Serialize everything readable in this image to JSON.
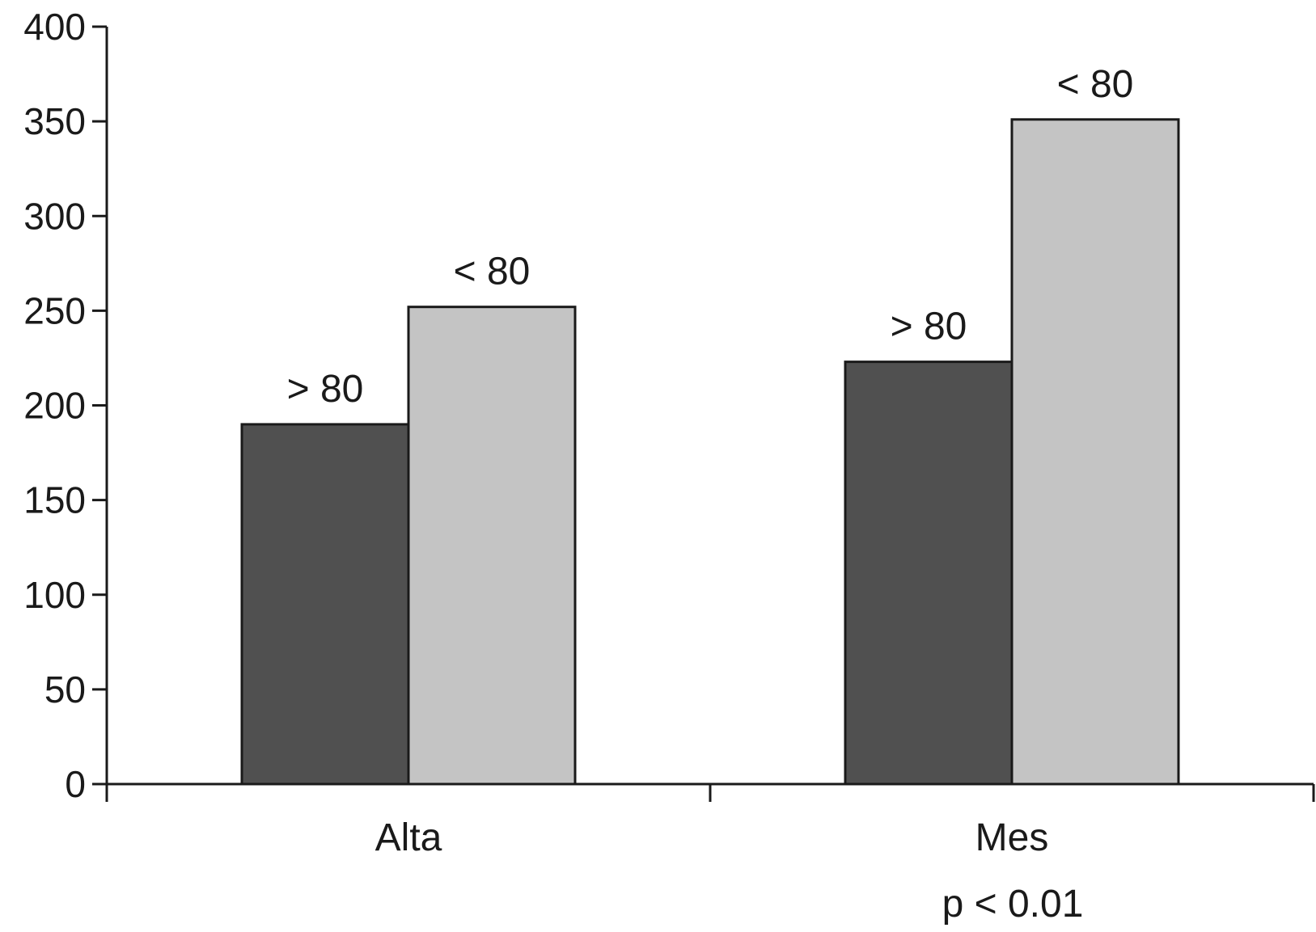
{
  "chart_data": {
    "type": "bar",
    "categories": [
      "Alta",
      "Mes"
    ],
    "series": [
      {
        "values": [
          190,
          223
        ],
        "color": "#505050"
      },
      {
        "values": [
          252,
          351
        ],
        "color": "#c4c4c4"
      }
    ],
    "bar_labels": [
      [
        "> 80",
        "< 80"
      ],
      [
        "> 80",
        "< 80"
      ]
    ],
    "ylim": [
      0,
      400
    ],
    "yticks": [
      0,
      50,
      100,
      150,
      200,
      250,
      300,
      350,
      400
    ],
    "annotation": "p < 0.01",
    "grid": false,
    "legend": "none"
  }
}
